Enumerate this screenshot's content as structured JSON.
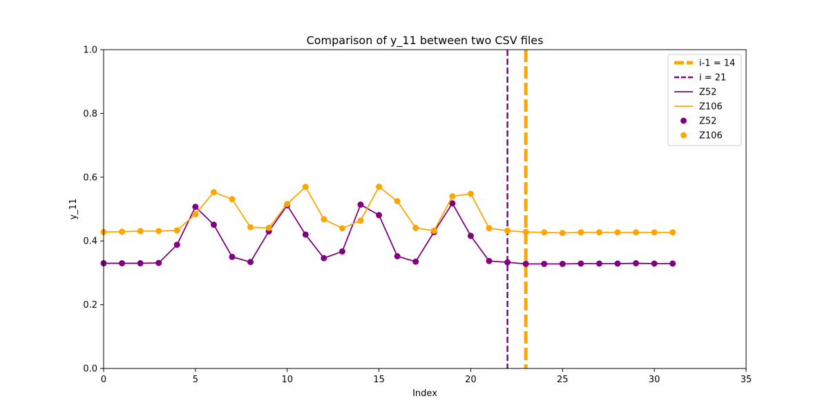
{
  "chart_data": {
    "type": "line",
    "title": "Comparison of y_11 between two CSV files",
    "xlabel": "Index",
    "ylabel": "y_11",
    "xlim": [
      0,
      35
    ],
    "ylim": [
      0,
      1
    ],
    "xticks": [
      "0",
      "5",
      "10",
      "15",
      "20",
      "25",
      "30",
      "35"
    ],
    "yticks": [
      "0.0",
      "0.2",
      "0.4",
      "0.6",
      "0.8",
      "1.0"
    ],
    "grid": false,
    "legend_position": "top-right",
    "x": [
      0,
      1,
      2,
      3,
      4,
      5,
      6,
      7,
      8,
      9,
      10,
      11,
      12,
      13,
      14,
      15,
      16,
      17,
      18,
      19,
      20,
      21,
      22,
      23,
      24,
      25,
      26,
      27,
      28,
      29,
      30,
      31
    ],
    "series": [
      {
        "name": "Z52",
        "color": "#800080",
        "values": [
          0.33,
          0.33,
          0.33,
          0.331,
          0.388,
          0.507,
          0.451,
          0.35,
          0.334,
          0.43,
          0.512,
          0.42,
          0.346,
          0.367,
          0.514,
          0.481,
          0.352,
          0.335,
          0.428,
          0.518,
          0.416,
          0.337,
          0.333,
          0.328,
          0.328,
          0.328,
          0.329,
          0.329,
          0.329,
          0.33,
          0.329,
          0.329
        ]
      },
      {
        "name": "Z106",
        "color": "#FFA500",
        "values": [
          0.428,
          0.429,
          0.431,
          0.431,
          0.433,
          0.484,
          0.553,
          0.531,
          0.443,
          0.441,
          0.516,
          0.57,
          0.468,
          0.44,
          0.464,
          0.57,
          0.525,
          0.441,
          0.432,
          0.54,
          0.548,
          0.44,
          0.432,
          0.428,
          0.427,
          0.425,
          0.427,
          0.427,
          0.427,
          0.427,
          0.427,
          0.427
        ]
      }
    ],
    "vlines": [
      {
        "label": "i-1 = 14",
        "x": 23,
        "color": "#FFA500",
        "style": "thick-dashed"
      },
      {
        "label": "i = 21",
        "x": 22,
        "color": "#800080",
        "style": "dashed"
      }
    ],
    "legend": [
      {
        "label": "i-1 = 14",
        "kind": "vline",
        "series": "vline0"
      },
      {
        "label": "i = 21",
        "kind": "vline",
        "series": "vline1"
      },
      {
        "label": "Z52",
        "kind": "line",
        "color": "#800080"
      },
      {
        "label": "Z106",
        "kind": "line",
        "color": "#FFA500"
      },
      {
        "label": "Z52",
        "kind": "marker",
        "color": "#800080"
      },
      {
        "label": "Z106",
        "kind": "marker",
        "color": "#FFA500"
      }
    ]
  }
}
